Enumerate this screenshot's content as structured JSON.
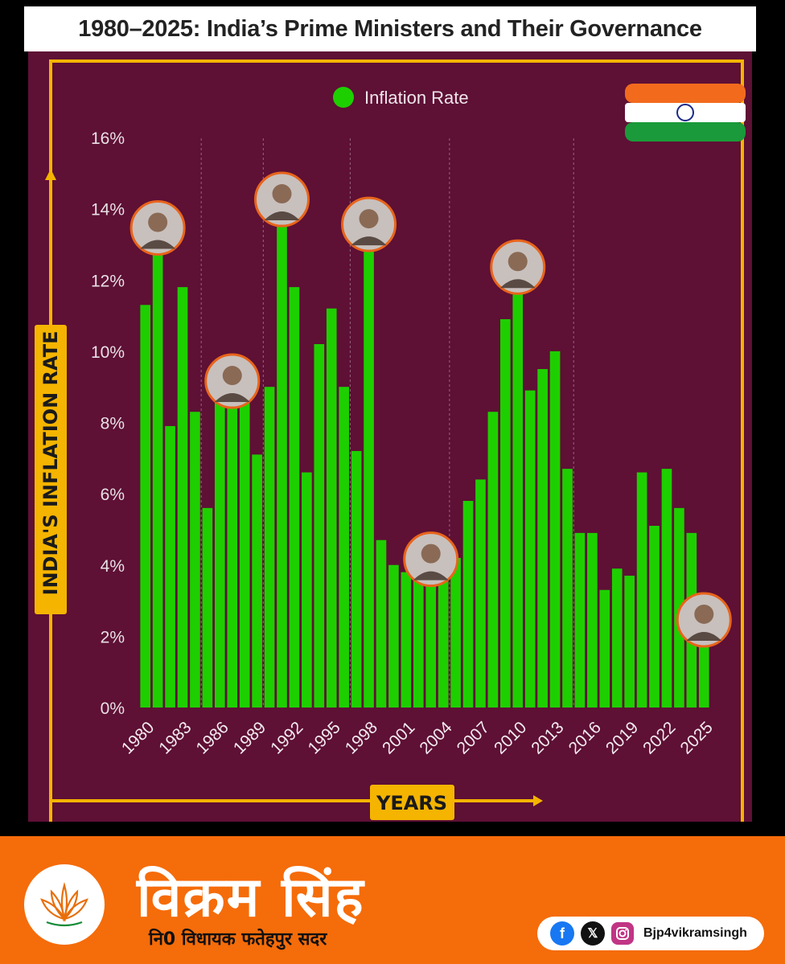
{
  "header": {
    "title": "1980–2025: India’s Prime Ministers and Their Governance"
  },
  "chart_data": {
    "type": "bar",
    "legend": "Inflation Rate",
    "legend_position": "top-left",
    "ylabel": "INDIA'S INFLATION RATE",
    "xlabel": "YEARS",
    "ylim": [
      0,
      16
    ],
    "y_ticks": [
      "0%",
      "2%",
      "4%",
      "6%",
      "8%",
      "10%",
      "12%",
      "14%",
      "16%"
    ],
    "x_tick_labels": [
      "1980",
      "1983",
      "1986",
      "1989",
      "1992",
      "1995",
      "1998",
      "2001",
      "2004",
      "2007",
      "2010",
      "2013",
      "2016",
      "2019",
      "2022",
      "2025"
    ],
    "categories": [
      "1980",
      "1981",
      "1982",
      "1983",
      "1984",
      "1985",
      "1986",
      "1987",
      "1988",
      "1989",
      "1990",
      "1991",
      "1992",
      "1993",
      "1994",
      "1995",
      "1996",
      "1997",
      "1998",
      "1999",
      "2000",
      "2001",
      "2002",
      "2003",
      "2004",
      "2005",
      "2006",
      "2007",
      "2008",
      "2009",
      "2010",
      "2011",
      "2012",
      "2013",
      "2014",
      "2015",
      "2016",
      "2017",
      "2018",
      "2019",
      "2020",
      "2021",
      "2022",
      "2023",
      "2024",
      "2025"
    ],
    "values": [
      11.3,
      13.1,
      7.9,
      11.8,
      8.3,
      5.6,
      8.7,
      8.8,
      9.4,
      7.1,
      9.0,
      13.9,
      11.8,
      6.6,
      10.2,
      11.2,
      9.0,
      7.2,
      13.2,
      4.7,
      4.0,
      3.8,
      4.3,
      3.8,
      3.8,
      4.2,
      5.8,
      6.4,
      8.3,
      10.9,
      12.0,
      8.9,
      9.5,
      10.0,
      6.7,
      4.9,
      4.9,
      3.3,
      3.9,
      3.7,
      6.6,
      5.1,
      6.7,
      5.6,
      4.9,
      2.1
    ],
    "colors": {
      "bar": "#1ecf00",
      "background": "#5e1035",
      "frame": "#f4b400",
      "grid": "#b9a2ae"
    },
    "grid": "dashed vertical lines at term boundaries",
    "pm_markers": [
      {
        "year": 1981
      },
      {
        "year": 1987
      },
      {
        "year": 1991
      },
      {
        "year": 1998
      },
      {
        "year": 2003
      },
      {
        "year": 2010
      },
      {
        "year": 2025
      }
    ]
  },
  "footer": {
    "name": "विक्रम सिंह",
    "subtitle": "नि0 विधायक फतेहपुर सदर",
    "social_handle": "Bjp4vikramsingh",
    "icons": [
      "lotus-logo",
      "facebook-icon",
      "x-icon",
      "instagram-icon"
    ]
  }
}
